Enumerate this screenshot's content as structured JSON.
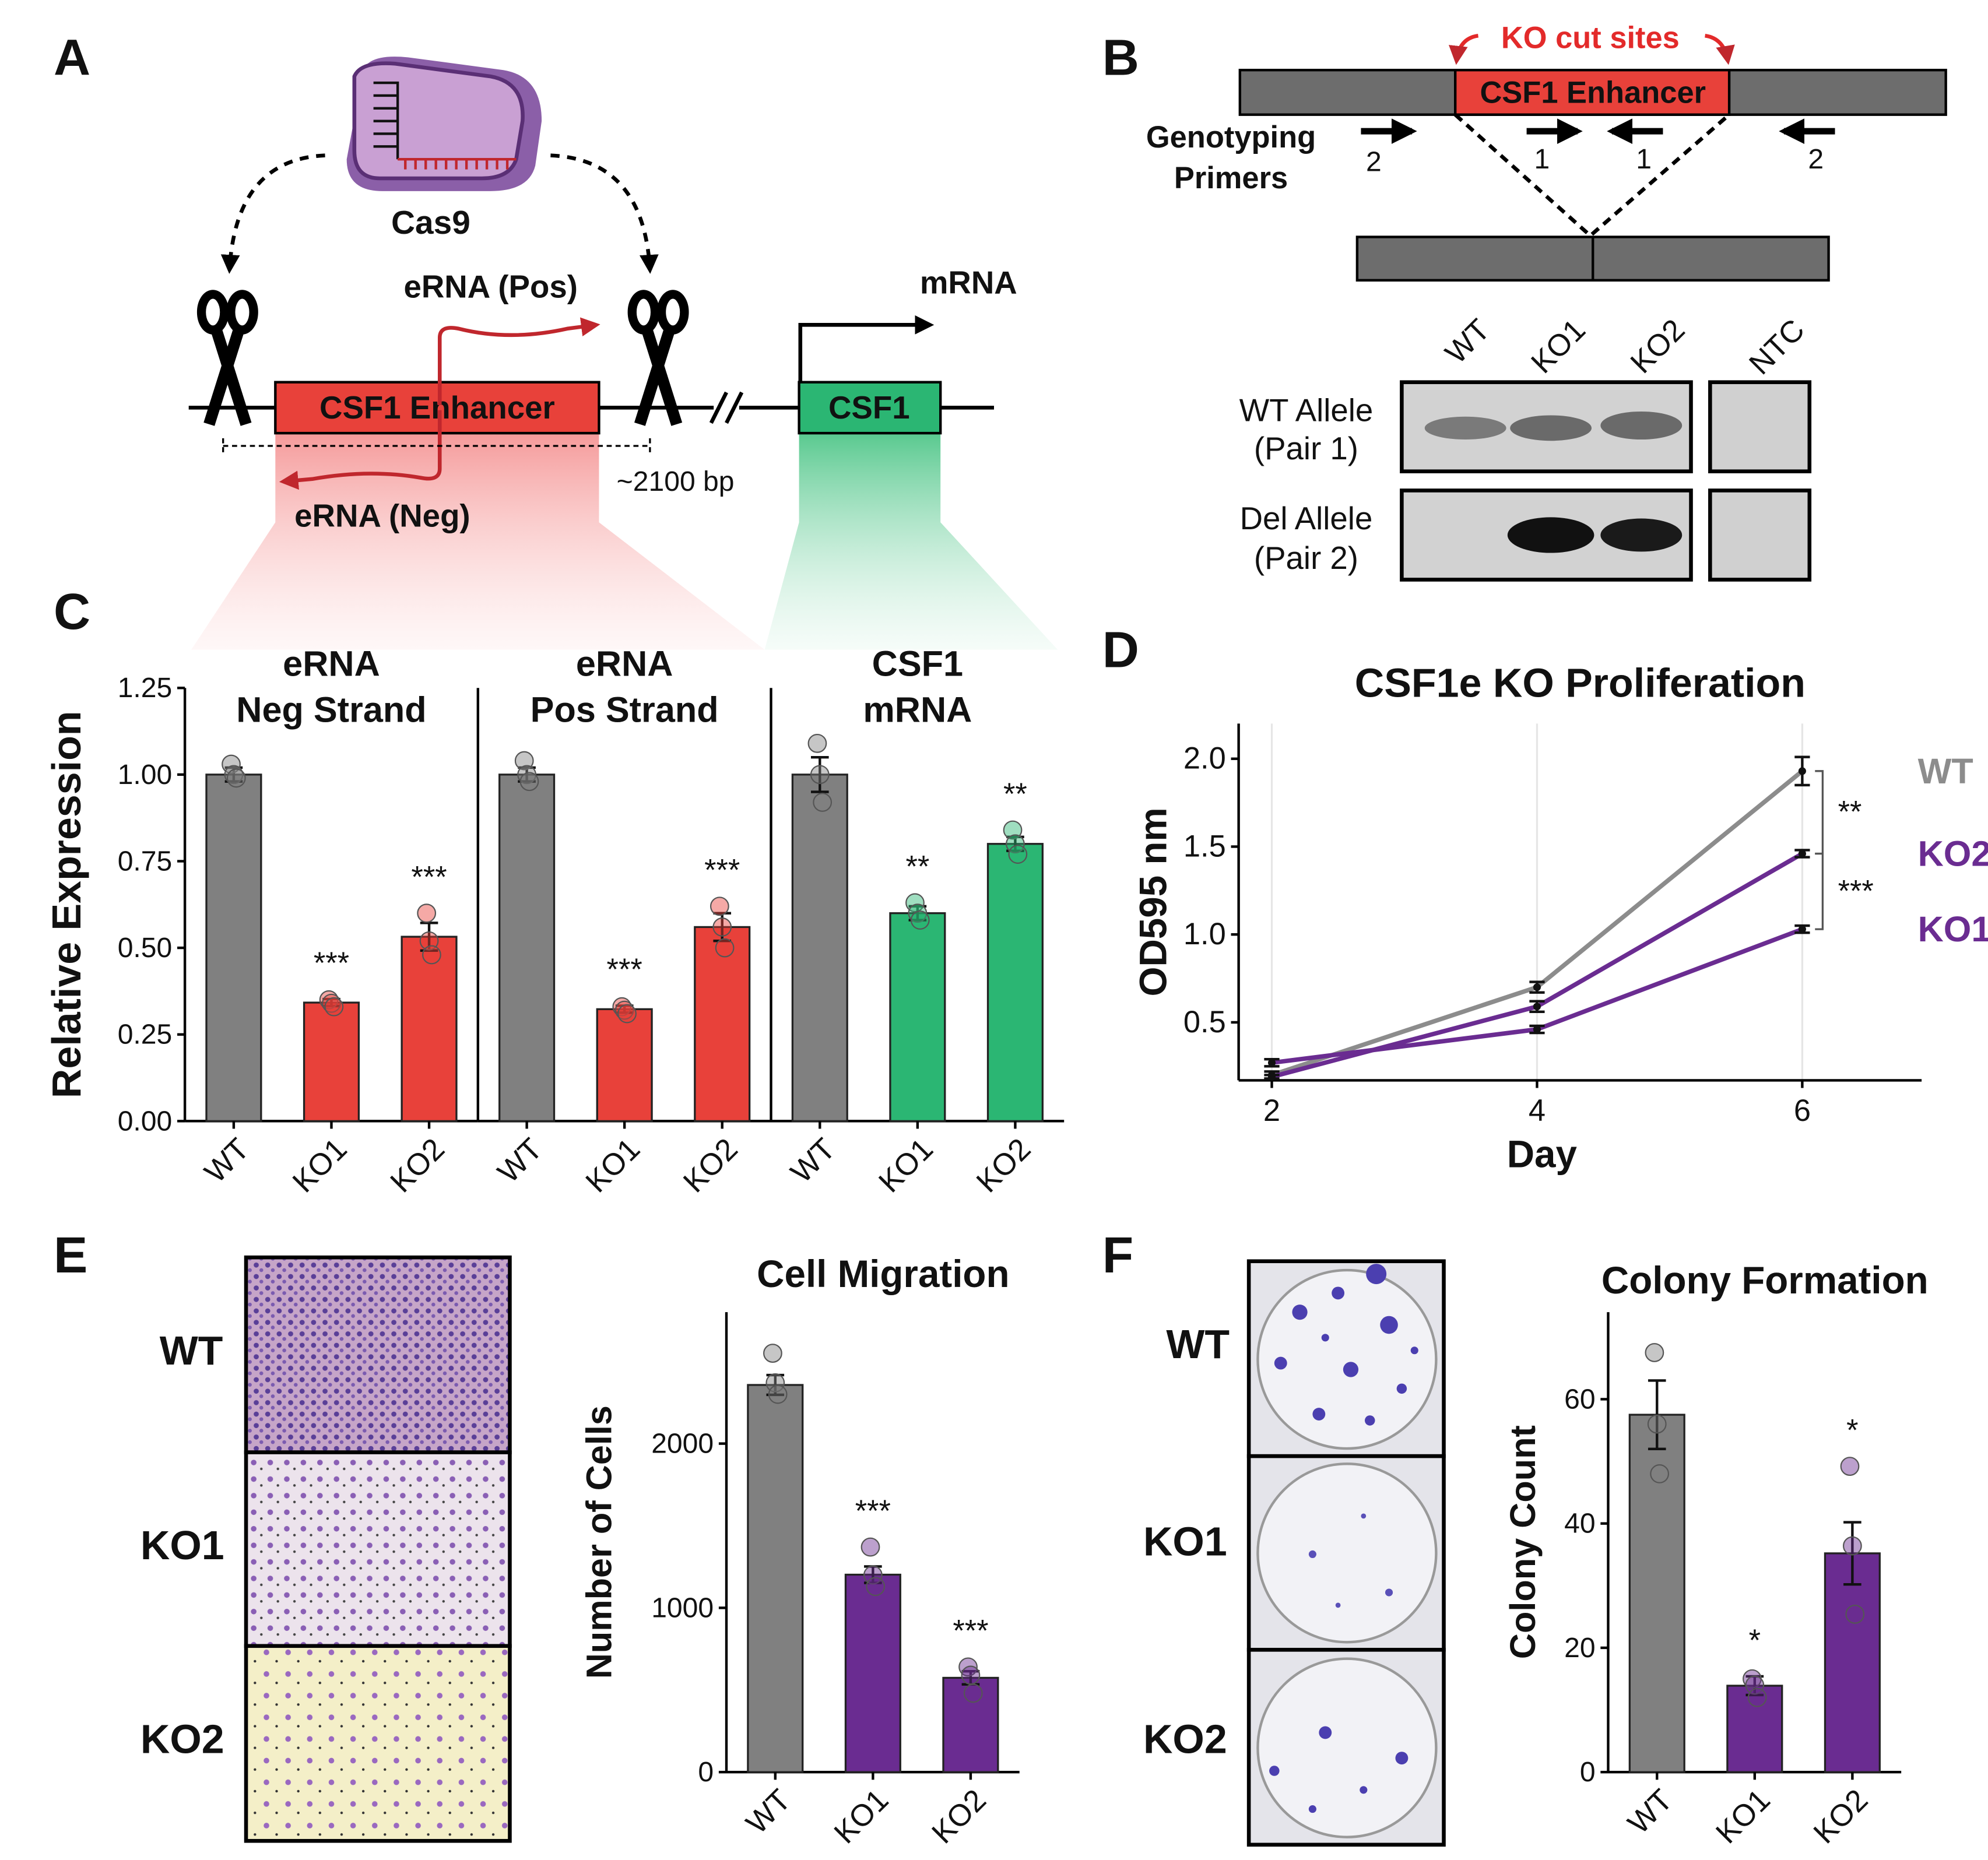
{
  "figure": {
    "panel_labels": [
      "A",
      "B",
      "C",
      "D",
      "E",
      "F"
    ]
  },
  "diagram_a": {
    "protein": "Cas9",
    "enhancer": "CSF1 Enhancer",
    "gene": "CSF1",
    "transcript": "mRNA",
    "erna_pos": "eRNA (Pos)",
    "erna_neg": "eRNA (Neg)",
    "deletion_size": "~2100 bp"
  },
  "diagram_b": {
    "cut_sites": "KO cut sites",
    "enhancer": "CSF1 Enhancer",
    "primer_title": [
      "Genotyping",
      "Primers"
    ],
    "primer_labels": [
      "2",
      "1",
      "1",
      "2"
    ],
    "lanes": [
      "WT",
      "KO1",
      "KO2",
      "NTC"
    ],
    "rows": [
      [
        "WT Allele",
        "(Pair 1)"
      ],
      [
        "Del Allele",
        "(Pair 2)"
      ]
    ]
  },
  "panel_e": {
    "image_labels": [
      "WT",
      "KO1",
      "KO2"
    ]
  },
  "panel_f": {
    "image_labels": [
      "WT",
      "KO1",
      "KO2"
    ]
  },
  "chart_data": [
    {
      "type": "bar",
      "title": [
        "eRNA",
        "Neg Strand"
      ],
      "ylabel": "Relative Expression",
      "categories": [
        "WT",
        "KO1",
        "KO2"
      ],
      "values": [
        1.0,
        0.342,
        0.532
      ],
      "errors": [
        0.02,
        0.01,
        0.04
      ],
      "points": [
        [
          1.03,
          1.0,
          0.99
        ],
        [
          0.35,
          0.34,
          0.33
        ],
        [
          0.6,
          0.52,
          0.48
        ]
      ],
      "annotations": [
        null,
        "***",
        "***"
      ],
      "colors": [
        "#808080",
        "#e8413a",
        "#e8413a"
      ],
      "ylim": [
        0,
        1.25
      ],
      "yticks": [
        {
          "value": 0,
          "label": "0.00"
        },
        0.25,
        {
          "value": 0.5,
          "label": "0.50"
        },
        0.75,
        {
          "value": 1,
          "label": "1.00"
        },
        1.25
      ]
    },
    {
      "type": "bar",
      "title": [
        "eRNA",
        "Pos Strand"
      ],
      "categories": [
        "WT",
        "KO1",
        "KO2"
      ],
      "values": [
        1.0,
        0.323,
        0.56
      ],
      "errors": [
        0.02,
        0.01,
        0.04
      ],
      "points": [
        [
          1.04,
          1.0,
          0.98
        ],
        [
          0.33,
          0.32,
          0.31
        ],
        [
          0.62,
          0.56,
          0.5
        ]
      ],
      "annotations": [
        null,
        "***",
        "***"
      ],
      "colors": [
        "#808080",
        "#e8413a",
        "#e8413a"
      ],
      "ylim": [
        0,
        1.25
      ]
    },
    {
      "type": "bar",
      "title": [
        "CSF1",
        "mRNA"
      ],
      "categories": [
        "WT",
        "KO1",
        "KO2"
      ],
      "values": [
        1.0,
        0.6,
        0.8
      ],
      "errors": [
        0.05,
        0.02,
        0.02
      ],
      "points": [
        [
          1.09,
          1.0,
          0.92
        ],
        [
          0.63,
          0.6,
          0.58
        ],
        [
          0.84,
          0.8,
          0.77
        ]
      ],
      "annotations": [
        null,
        "**",
        "**"
      ],
      "colors": [
        "#808080",
        "#2bb673",
        "#2bb673"
      ],
      "ylim": [
        0,
        1.25
      ]
    },
    {
      "type": "line",
      "title": "CSF1e KO Proliferation",
      "xlabel": "Day",
      "ylabel": "OD595 nm",
      "x": [
        2,
        4,
        6
      ],
      "series": [
        {
          "name": "WT",
          "color": "#8c8c8c",
          "values": [
            0.2,
            0.7,
            1.93
          ],
          "errors": [
            0.02,
            0.03,
            0.08
          ]
        },
        {
          "name": "KO2",
          "color": "#6a2c91",
          "values": [
            0.19,
            0.59,
            1.46
          ],
          "errors": [
            0.01,
            0.03,
            0.02
          ]
        },
        {
          "name": "KO1",
          "color": "#6a2c91",
          "values": [
            0.27,
            0.46,
            1.03
          ],
          "errors": [
            0.02,
            0.02,
            0.02
          ]
        }
      ],
      "annotations": [
        "**",
        "***"
      ],
      "xlim": [
        1.75,
        6.9
      ],
      "ylim": [
        0.17,
        2.2
      ],
      "xticks": [
        2,
        4,
        6
      ],
      "yticks": [
        0.5,
        {
          "value": 1,
          "label": "1.0"
        },
        1.5,
        {
          "value": 2,
          "label": "2.0"
        }
      ],
      "grid": "x"
    },
    {
      "type": "bar",
      "title": "Cell Migration",
      "ylabel": "Number of Cells",
      "categories": [
        "WT",
        "KO1",
        "KO2"
      ],
      "values": [
        2357,
        1202,
        574
      ],
      "errors": [
        60,
        50,
        40
      ],
      "points": [
        [
          2550,
          2370,
          2300
        ],
        [
          1370,
          1200,
          1130
        ],
        [
          640,
          590,
          480
        ]
      ],
      "annotations": [
        null,
        "***",
        "***"
      ],
      "colors": [
        "#808080",
        "#6a2c91",
        "#6a2c91"
      ],
      "ylim": [
        0,
        2800
      ],
      "yticks": [
        0,
        1000,
        2000
      ]
    },
    {
      "type": "bar",
      "title": "Colony Formation",
      "ylabel": "Colony Count",
      "categories": [
        "WT",
        "KO1",
        "KO2"
      ],
      "values": [
        57.5,
        13.9,
        35.2
      ],
      "errors": [
        5.5,
        1.5,
        5
      ],
      "points": [
        [
          67.5,
          56,
          48
        ],
        [
          15,
          14,
          12
        ],
        [
          49.2,
          36.4,
          25.4
        ]
      ],
      "annotations": [
        null,
        "*",
        "*"
      ],
      "colors": [
        "#808080",
        "#6a2c91",
        "#6a2c91"
      ],
      "ylim": [
        0,
        74
      ],
      "yticks": [
        0,
        20,
        40,
        60
      ]
    }
  ]
}
